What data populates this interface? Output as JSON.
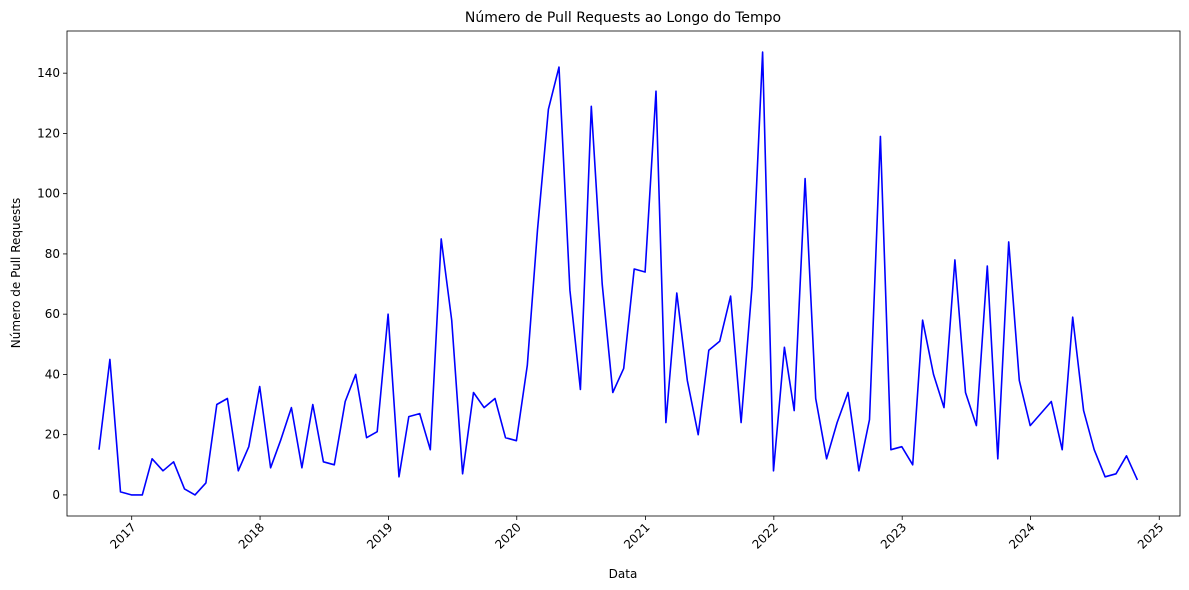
{
  "chart_data": {
    "type": "line",
    "title": "Número de Pull Requests ao Longo do Tempo",
    "xlabel": "Data",
    "ylabel": "Número de Pull Requests",
    "x_axis_type": "date",
    "xlim": [
      "2016-07-01",
      "2025-03-01"
    ],
    "ylim": [
      -7,
      154
    ],
    "x_ticks": [
      {
        "date": "2017-01-01",
        "label": "2017"
      },
      {
        "date": "2018-01-01",
        "label": "2018"
      },
      {
        "date": "2019-01-01",
        "label": "2019"
      },
      {
        "date": "2020-01-01",
        "label": "2020"
      },
      {
        "date": "2021-01-01",
        "label": "2021"
      },
      {
        "date": "2022-01-01",
        "label": "2022"
      },
      {
        "date": "2023-01-01",
        "label": "2023"
      },
      {
        "date": "2024-01-01",
        "label": "2024"
      },
      {
        "date": "2025-01-01",
        "label": "2025"
      }
    ],
    "y_ticks": [
      0,
      20,
      40,
      60,
      80,
      100,
      120,
      140
    ],
    "grid": false,
    "legend": "none",
    "series": [
      {
        "color": "#0000ff",
        "x": [
          "2016-09-30",
          "2016-10-31",
          "2016-11-30",
          "2016-12-31",
          "2017-01-31",
          "2017-02-28",
          "2017-03-31",
          "2017-04-30",
          "2017-05-31",
          "2017-06-30",
          "2017-07-31",
          "2017-08-31",
          "2017-09-30",
          "2017-10-31",
          "2017-11-30",
          "2017-12-31",
          "2018-01-31",
          "2018-02-28",
          "2018-03-31",
          "2018-04-30",
          "2018-05-31",
          "2018-06-30",
          "2018-07-31",
          "2018-08-31",
          "2018-09-30",
          "2018-10-31",
          "2018-11-30",
          "2018-12-31",
          "2019-01-31",
          "2019-02-28",
          "2019-03-31",
          "2019-04-30",
          "2019-05-31",
          "2019-06-30",
          "2019-07-31",
          "2019-08-31",
          "2019-09-30",
          "2019-10-31",
          "2019-11-30",
          "2019-12-31",
          "2020-01-31",
          "2020-02-29",
          "2020-03-31",
          "2020-04-30",
          "2020-05-31",
          "2020-06-30",
          "2020-07-31",
          "2020-08-31",
          "2020-09-30",
          "2020-10-31",
          "2020-11-30",
          "2020-12-31",
          "2021-01-31",
          "2021-02-28",
          "2021-03-31",
          "2021-04-30",
          "2021-05-31",
          "2021-06-30",
          "2021-07-31",
          "2021-08-31",
          "2021-09-30",
          "2021-10-31",
          "2021-11-30",
          "2021-12-31",
          "2022-01-31",
          "2022-02-28",
          "2022-03-31",
          "2022-04-30",
          "2022-05-31",
          "2022-06-30",
          "2022-07-31",
          "2022-08-31",
          "2022-09-30",
          "2022-10-31",
          "2022-11-30",
          "2022-12-31",
          "2023-01-31",
          "2023-02-28",
          "2023-03-31",
          "2023-04-30",
          "2023-05-31",
          "2023-06-30",
          "2023-07-31",
          "2023-08-31",
          "2023-09-30",
          "2023-10-31",
          "2023-11-30",
          "2023-12-31",
          "2024-02-29",
          "2024-03-31",
          "2024-04-30",
          "2024-05-31",
          "2024-06-30",
          "2024-07-31",
          "2024-08-31",
          "2024-09-30",
          "2024-10-31"
        ],
        "y": [
          15,
          45,
          1,
          0,
          0,
          12,
          8,
          11,
          2,
          0,
          4,
          30,
          32,
          8,
          16,
          36,
          9,
          18,
          29,
          9,
          30,
          11,
          10,
          31,
          40,
          19,
          21,
          60,
          6,
          26,
          27,
          15,
          85,
          58,
          7,
          34,
          29,
          32,
          19,
          18,
          43,
          88,
          128,
          142,
          68,
          35,
          129,
          70,
          34,
          42,
          75,
          74,
          134,
          24,
          67,
          38,
          20,
          48,
          51,
          66,
          24,
          69,
          147,
          8,
          49,
          28,
          105,
          32,
          12,
          24,
          34,
          8,
          25,
          119,
          15,
          16,
          10,
          58,
          40,
          29,
          78,
          34,
          23,
          76,
          12,
          84,
          38,
          23,
          31,
          15,
          59,
          28,
          15,
          6,
          7,
          13,
          5
        ]
      }
    ]
  }
}
